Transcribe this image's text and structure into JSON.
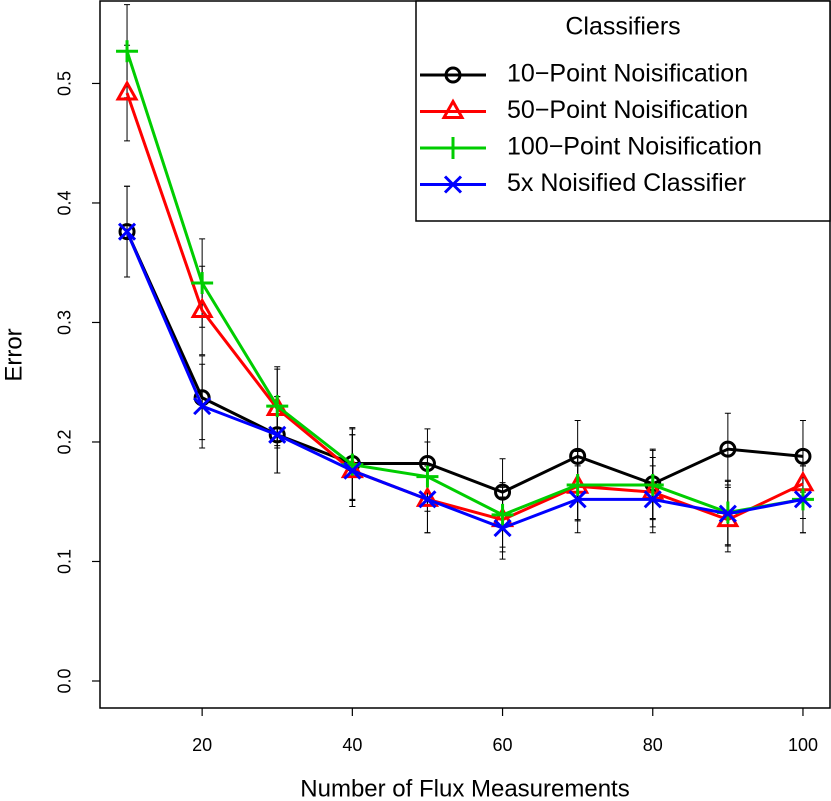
{
  "chart_data": {
    "type": "line",
    "xlabel": "Number of Flux Measurements",
    "ylabel": "Error",
    "legend_title": "Classifiers",
    "legend_position": "top-right",
    "x": [
      10,
      20,
      30,
      40,
      50,
      60,
      70,
      80,
      90,
      100
    ],
    "xlim": [
      6.4,
      103.6
    ],
    "xticks": [
      20,
      40,
      60,
      80,
      100
    ],
    "ylim": [
      -0.0226,
      0.569
    ],
    "yticks": [
      {
        "value": 0,
        "label": "0.0"
      },
      0.1,
      0.2,
      0.3,
      0.4,
      0.5
    ],
    "series": [
      {
        "name": "10−Point Noisification",
        "color": "#000000",
        "marker": "circle",
        "values": [
          0.376,
          0.237,
          0.206,
          0.182,
          0.182,
          0.158,
          0.188,
          0.165,
          0.194,
          0.188
        ],
        "errors": [
          0.038,
          0.035,
          0.032,
          0.03,
          0.029,
          0.028,
          0.03,
          0.029,
          0.03,
          0.03
        ]
      },
      {
        "name": "50−Point Noisification",
        "color": "#ff0000",
        "marker": "triangle",
        "values": [
          0.492,
          0.31,
          0.228,
          0.176,
          0.152,
          0.135,
          0.163,
          0.158,
          0.135,
          0.165
        ],
        "errors": [
          0.04,
          0.037,
          0.033,
          0.03,
          0.028,
          0.027,
          0.029,
          0.029,
          0.027,
          0.029
        ]
      },
      {
        "name": "100−Point Noisification",
        "color": "#00cd00",
        "marker": "plus",
        "values": [
          0.527,
          0.333,
          0.23,
          0.181,
          0.171,
          0.139,
          0.164,
          0.164,
          0.141,
          0.152
        ],
        "errors": [
          0.039,
          0.037,
          0.033,
          0.03,
          0.029,
          0.027,
          0.029,
          0.029,
          0.027,
          0.028
        ]
      },
      {
        "name": "5x Noisified Classifier",
        "color": "#0000ff",
        "marker": "x",
        "values": [
          0.376,
          0.23,
          0.206,
          0.176,
          0.152,
          0.128,
          0.152,
          0.152,
          0.14,
          0.152
        ],
        "errors": [
          0.038,
          0.035,
          0.032,
          0.03,
          0.028,
          0.026,
          0.028,
          0.028,
          0.027,
          0.028
        ]
      }
    ]
  }
}
